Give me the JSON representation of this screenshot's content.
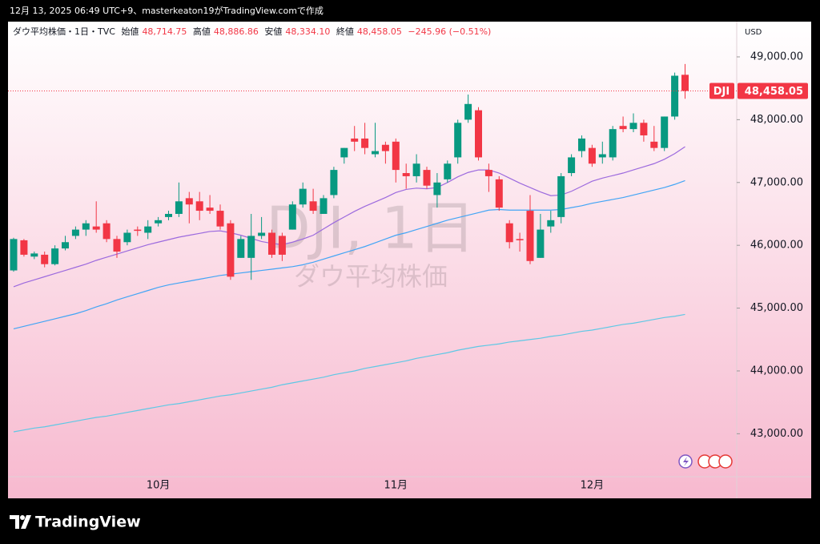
{
  "header": {
    "text": "12月 13, 2025 06:49 UTC+9、masterkeaton19がTradingView.comで作成"
  },
  "footer": {
    "brand": "TradingView"
  },
  "chart_data": {
    "type": "candlestick",
    "legend": {
      "name": "ダウ平均株価・1日・TVC",
      "items": [
        {
          "label": "始値",
          "value": "48,714.75"
        },
        {
          "label": "高値",
          "value": "48,886.86"
        },
        {
          "label": "安値",
          "value": "48,334.10"
        },
        {
          "label": "終値",
          "value": "48,458.05"
        }
      ],
      "change": "−245.96 (−0.51%)"
    },
    "watermark": {
      "title": "DJI, 1日",
      "subtitle": "ダウ平均株価"
    },
    "currency": "USD",
    "symbol": "DJI",
    "last_price_label": "48,458.05",
    "up_color": "#089981",
    "down_color": "#f23645",
    "categories": [
      null,
      null,
      null,
      null,
      null,
      null,
      null,
      null,
      null,
      null,
      null,
      null,
      null,
      null,
      "10月",
      null,
      null,
      null,
      null,
      null,
      null,
      null,
      null,
      null,
      null,
      null,
      null,
      null,
      null,
      null,
      null,
      null,
      null,
      null,
      null,
      null,
      null,
      "11月",
      null,
      null,
      null,
      null,
      null,
      null,
      null,
      null,
      null,
      null,
      null,
      null,
      null,
      null,
      null,
      null,
      null,
      null,
      "12月",
      null,
      null,
      null,
      null,
      null,
      null,
      null,
      null,
      null
    ],
    "open": [
      45600,
      46080,
      45820,
      45850,
      45700,
      45950,
      46150,
      46250,
      46300,
      46350,
      46100,
      46050,
      46250,
      46200,
      46350,
      46450,
      46500,
      46750,
      46700,
      46600,
      46550,
      46350,
      45800,
      45800,
      46150,
      46200,
      46150,
      46250,
      46650,
      46700,
      46500,
      46800,
      47400,
      47700,
      47700,
      47450,
      47600,
      47650,
      47150,
      47100,
      47200,
      46800,
      47050,
      47400,
      48000,
      48150,
      47200,
      47050,
      46350,
      46100,
      46550,
      45800,
      46300,
      46450,
      47150,
      47500,
      47550,
      47400,
      47400,
      47900,
      47850,
      47950,
      47650,
      47550,
      48050,
      48714.75
    ],
    "high": [
      46120,
      46100,
      45900,
      45900,
      46000,
      46150,
      46300,
      46400,
      46700,
      46400,
      46150,
      46250,
      46300,
      46400,
      46450,
      46550,
      47000,
      46850,
      46850,
      46800,
      46650,
      46400,
      46150,
      46500,
      46450,
      46250,
      46200,
      46700,
      47000,
      46900,
      46800,
      47250,
      47550,
      47900,
      47950,
      47950,
      47650,
      47700,
      47300,
      47450,
      47250,
      47150,
      47350,
      48000,
      48400,
      48200,
      47300,
      47100,
      46400,
      46200,
      46800,
      46500,
      46550,
      47150,
      47450,
      47750,
      47600,
      47650,
      47900,
      48050,
      48100,
      48000,
      47900,
      48050,
      48750,
      48886.86
    ],
    "low": [
      45580,
      45820,
      45780,
      45650,
      45680,
      45920,
      46100,
      46150,
      46200,
      46050,
      45800,
      46000,
      46150,
      46100,
      46300,
      46400,
      46450,
      46350,
      46400,
      46500,
      46250,
      45450,
      45800,
      45450,
      46100,
      45800,
      45750,
      46250,
      46600,
      46500,
      46500,
      46750,
      47300,
      47500,
      47450,
      47400,
      47300,
      47000,
      46900,
      47000,
      46900,
      46600,
      47000,
      47300,
      47950,
      47350,
      46850,
      46550,
      45950,
      45900,
      45700,
      45800,
      46200,
      46350,
      47100,
      47400,
      47250,
      47300,
      47350,
      47800,
      47800,
      47650,
      47500,
      47500,
      48000,
      48334.1
    ],
    "close": [
      46100,
      45850,
      45870,
      45700,
      45950,
      46050,
      46250,
      46350,
      46250,
      46100,
      45900,
      46200,
      46230,
      46300,
      46400,
      46500,
      46700,
      46650,
      46550,
      46550,
      46300,
      45500,
      46100,
      46150,
      46200,
      45850,
      45850,
      46650,
      46900,
      46550,
      46750,
      47200,
      47550,
      47650,
      47550,
      47500,
      47500,
      47200,
      47100,
      47300,
      46950,
      47000,
      47300,
      47950,
      48250,
      47400,
      47100,
      46600,
      46050,
      46080,
      45750,
      46250,
      46400,
      47100,
      47400,
      47700,
      47300,
      47450,
      47850,
      47850,
      47950,
      47750,
      47550,
      48050,
      48700,
      48458.05
    ],
    "series": [
      {
        "color": "#9c6ade",
        "values": [
          45340,
          45400,
          45450,
          45500,
          45550,
          45600,
          45650,
          45700,
          45760,
          45810,
          45860,
          45910,
          45960,
          46010,
          46050,
          46090,
          46130,
          46160,
          46190,
          46220,
          46230,
          46200,
          46160,
          46110,
          46060,
          46030,
          46010,
          46050,
          46100,
          46160,
          46260,
          46360,
          46450,
          46540,
          46620,
          46690,
          46760,
          46840,
          46890,
          46910,
          46900,
          46920,
          47000,
          47090,
          47160,
          47200,
          47200,
          47150,
          47070,
          46990,
          46920,
          46850,
          46790,
          46800,
          46860,
          46940,
          47020,
          47070,
          47110,
          47150,
          47200,
          47250,
          47300,
          47370,
          47460,
          47570
        ]
      },
      {
        "color": "#42a5f5",
        "values": [
          44670,
          44710,
          44750,
          44790,
          44830,
          44870,
          44910,
          44960,
          45020,
          45070,
          45130,
          45180,
          45230,
          45280,
          45330,
          45370,
          45400,
          45430,
          45460,
          45490,
          45520,
          45540,
          45560,
          45580,
          45600,
          45620,
          45640,
          45660,
          45690,
          45730,
          45780,
          45830,
          45880,
          45930,
          45980,
          46040,
          46100,
          46160,
          46200,
          46250,
          46300,
          46350,
          46400,
          46440,
          46480,
          46520,
          46560,
          46570,
          46560,
          46560,
          46560,
          46560,
          46560,
          46570,
          46600,
          46630,
          46670,
          46700,
          46730,
          46760,
          46800,
          46840,
          46880,
          46920,
          46970,
          47030
        ]
      },
      {
        "color": "#5ec8e5",
        "values": [
          43030,
          43060,
          43090,
          43110,
          43140,
          43170,
          43200,
          43230,
          43260,
          43280,
          43310,
          43340,
          43370,
          43400,
          43430,
          43460,
          43480,
          43510,
          43540,
          43570,
          43600,
          43620,
          43650,
          43680,
          43710,
          43740,
          43780,
          43810,
          43840,
          43870,
          43900,
          43940,
          43970,
          44000,
          44040,
          44070,
          44100,
          44130,
          44160,
          44200,
          44230,
          44260,
          44290,
          44330,
          44360,
          44390,
          44410,
          44430,
          44460,
          44480,
          44500,
          44520,
          44550,
          44570,
          44600,
          44630,
          44650,
          44680,
          44710,
          44740,
          44760,
          44790,
          44820,
          44850,
          44870,
          44900
        ]
      }
    ],
    "ylim": [
      42316,
      49561
    ],
    "yticks": [
      {
        "value": 43000,
        "label": "43,000.00"
      },
      {
        "value": 44000,
        "label": "44,000.00"
      },
      {
        "value": 45000,
        "label": "45,000.00"
      },
      {
        "value": 46000,
        "label": "46,000.00"
      },
      {
        "value": 47000,
        "label": "47,000.00"
      },
      {
        "value": 48000,
        "label": "48,000.00"
      },
      {
        "value": 49000,
        "label": "49,000.00"
      }
    ]
  }
}
